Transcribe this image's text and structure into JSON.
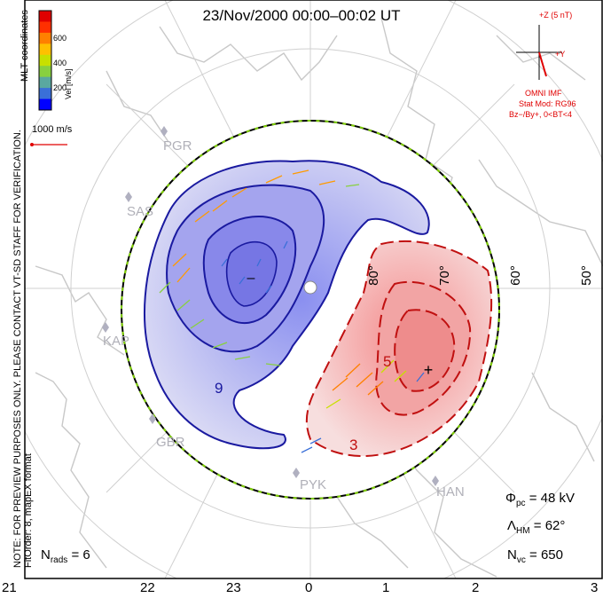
{
  "title": "23/Nov/2000 00:00–00:02 UT",
  "side_note": [
    "NOTE: FOR PREVIEW PURPOSES ONLY. PLEASE CONTACT VT-SD STAFF FOR VERIFICATION.",
    "FitOrder: 8, mapEX format"
  ],
  "coordinates_label": "MLT coordinates",
  "colorbar": {
    "label": "Vel [m/s]",
    "ticks": [
      "600",
      "400",
      "200"
    ],
    "colors": [
      "#0000ff",
      "#3a6fd8",
      "#5aa8a0",
      "#88d040",
      "#c8e000",
      "#ffc000",
      "#ff8000",
      "#ff3000",
      "#e00000"
    ]
  },
  "reference_vector": "1000 m/s",
  "imf": {
    "axis_z": "+Z (5 nT)",
    "axis_y": "+Y",
    "source": "OMNI IMF",
    "model": "Stat Mod: RG96",
    "condition": "Bz−/By+, 0<BT<4"
  },
  "stats": {
    "potential_label": "Φ",
    "potential_sub": "pc",
    "potential_value": "= 48 kV",
    "hm_label": "Λ",
    "hm_sub": "HM",
    "hm_value": "= 62°",
    "nvc_label": "N",
    "nvc_sub": "vc",
    "nvc_value": "= 650",
    "nrads_label": "N",
    "nrads_sub": "rads",
    "nrads_value": "= 6"
  },
  "mlt_ticks": [
    "21",
    "22",
    "23",
    "0",
    "1",
    "2",
    "3"
  ],
  "latitude_labels": [
    "70°",
    "60°",
    "50°",
    "80°"
  ],
  "sites": [
    "PGR",
    "SAS",
    "KAP",
    "GBR",
    "PYK",
    "HAN"
  ],
  "contour_labels": [
    "9",
    "3",
    "5"
  ]
}
